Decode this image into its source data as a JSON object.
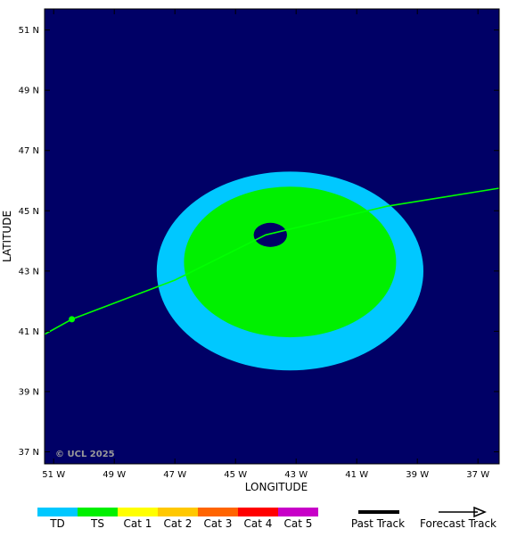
{
  "chart_data": {
    "type": "map",
    "xlabel": "LONGITUDE",
    "ylabel": "LATITUDE",
    "xlim": [
      -51.3,
      -36.3
    ],
    "ylim": [
      36.6,
      51.7
    ],
    "x_ticks": [
      {
        "value": -51,
        "label": "51 W"
      },
      {
        "value": -49,
        "label": "49 W"
      },
      {
        "value": -47,
        "label": "47 W"
      },
      {
        "value": -45,
        "label": "45 W"
      },
      {
        "value": -43,
        "label": "43 W"
      },
      {
        "value": -41,
        "label": "41 W"
      },
      {
        "value": -39,
        "label": "39 W"
      },
      {
        "value": -37,
        "label": "37 W"
      }
    ],
    "y_ticks": [
      {
        "value": 51,
        "label": "51 N"
      },
      {
        "value": 49,
        "label": "49 N"
      },
      {
        "value": 47,
        "label": "47 N"
      },
      {
        "value": 45,
        "label": "45 N"
      },
      {
        "value": 43,
        "label": "43 N"
      },
      {
        "value": 41,
        "label": "41 N"
      },
      {
        "value": 39,
        "label": "39 N"
      },
      {
        "value": 37,
        "label": "37 N"
      }
    ],
    "background_color": "#000066",
    "wind_swath": [
      {
        "category": "TD",
        "color": "#00c8ff",
        "center": {
          "lon": -43.2,
          "lat": 43.0
        },
        "radius_lon": 4.4,
        "radius_lat": 3.3
      },
      {
        "category": "TS",
        "color": "#00f000",
        "center": {
          "lon": -43.2,
          "lat": 43.3
        },
        "radius_lon": 3.5,
        "radius_lat": 2.5
      },
      {
        "category": "eye",
        "color": "#000066",
        "center": {
          "lon": -43.85,
          "lat": 44.2
        },
        "radius_lon": 0.55,
        "radius_lat": 0.4
      }
    ],
    "track": {
      "color": "#00ff00",
      "points": [
        {
          "lon": -51.3,
          "lat": 40.9
        },
        {
          "lon": -50.4,
          "lat": 41.4
        },
        {
          "lon": -47.0,
          "lat": 42.7
        },
        {
          "lon": -44.0,
          "lat": 44.2
        },
        {
          "lon": -40.0,
          "lat": 45.15
        },
        {
          "lon": -36.3,
          "lat": 45.75
        }
      ],
      "marker": {
        "lon": -50.4,
        "lat": 41.4
      }
    },
    "copyright": "© UCL 2025"
  },
  "legend": {
    "categories": [
      {
        "label": "TD",
        "color": "#00c8ff"
      },
      {
        "label": "TS",
        "color": "#00f000"
      },
      {
        "label": "Cat 1",
        "color": "#ffff00"
      },
      {
        "label": "Cat 2",
        "color": "#ffc800"
      },
      {
        "label": "Cat 3",
        "color": "#ff6400"
      },
      {
        "label": "Cat 4",
        "color": "#ff0000"
      },
      {
        "label": "Cat 5",
        "color": "#c800c8"
      }
    ],
    "past_track": "Past Track",
    "forecast_track": "Forecast Track"
  }
}
